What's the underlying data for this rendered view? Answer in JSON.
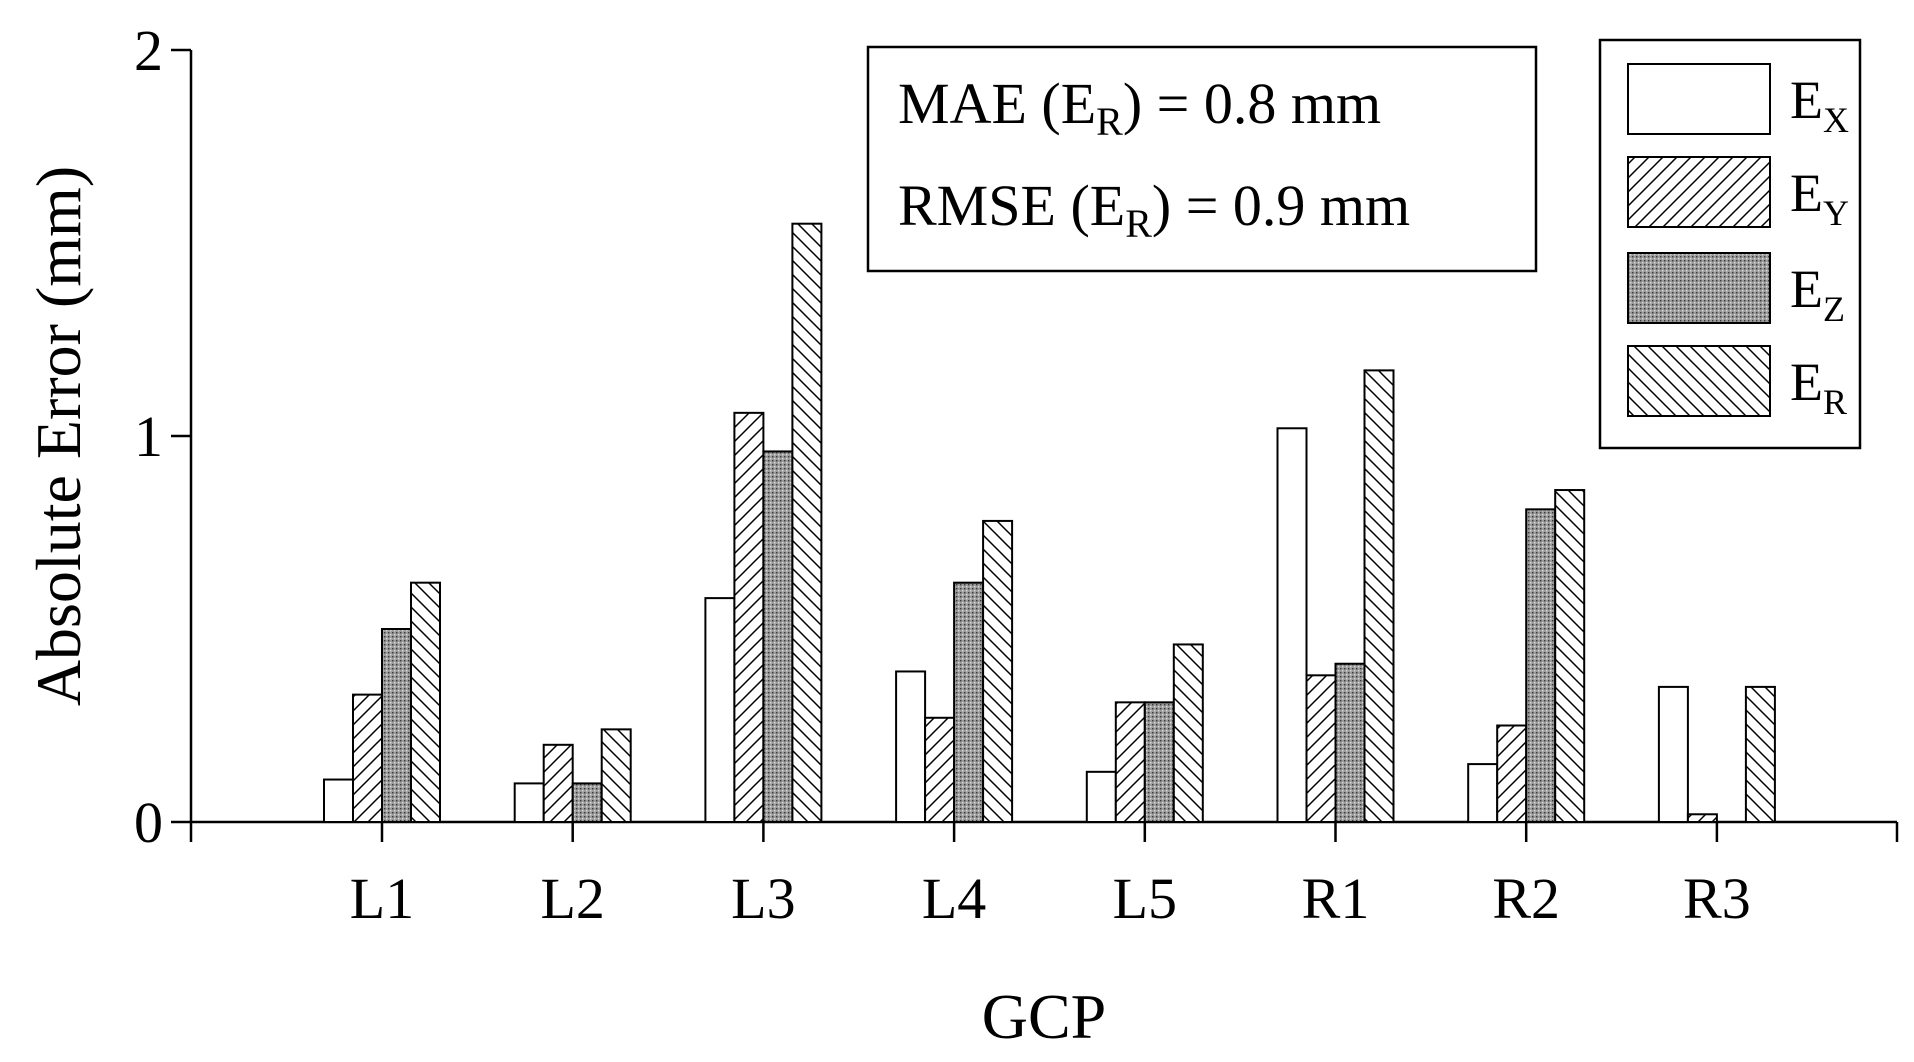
{
  "chart_data": {
    "type": "bar",
    "title": "",
    "xlabel": "GCP",
    "ylabel": "Absolute Error (mm)",
    "ylim": [
      0,
      2
    ],
    "yticks": [
      "0",
      "1",
      "2"
    ],
    "grid": false,
    "legend_position": "top-right",
    "categories": [
      "L1",
      "L2",
      "L3",
      "L4",
      "L5",
      "R1",
      "R2",
      "R3"
    ],
    "series": [
      {
        "name": "E",
        "sub": "X",
        "pattern": "blank",
        "values": [
          0.11,
          0.1,
          0.58,
          0.39,
          0.13,
          1.02,
          0.15,
          0.35
        ]
      },
      {
        "name": "E",
        "sub": "Y",
        "pattern": "hatch-forward",
        "values": [
          0.33,
          0.2,
          1.06,
          0.27,
          0.31,
          0.38,
          0.25,
          0.02
        ]
      },
      {
        "name": "E",
        "sub": "Z",
        "pattern": "dotted",
        "values": [
          0.5,
          0.1,
          0.96,
          0.62,
          0.31,
          0.41,
          0.81,
          0.0
        ]
      },
      {
        "name": "E",
        "sub": "R",
        "pattern": "hatch-backward",
        "values": [
          0.62,
          0.24,
          1.55,
          0.78,
          0.46,
          1.17,
          0.86,
          0.35
        ]
      }
    ],
    "annotations": [
      {
        "prefix": "MAE (E",
        "sub": "R",
        "suffix": ") = 0.8 mm"
      },
      {
        "prefix": "RMSE (E",
        "sub": "R",
        "suffix": ") = 0.9 mm"
      }
    ]
  }
}
